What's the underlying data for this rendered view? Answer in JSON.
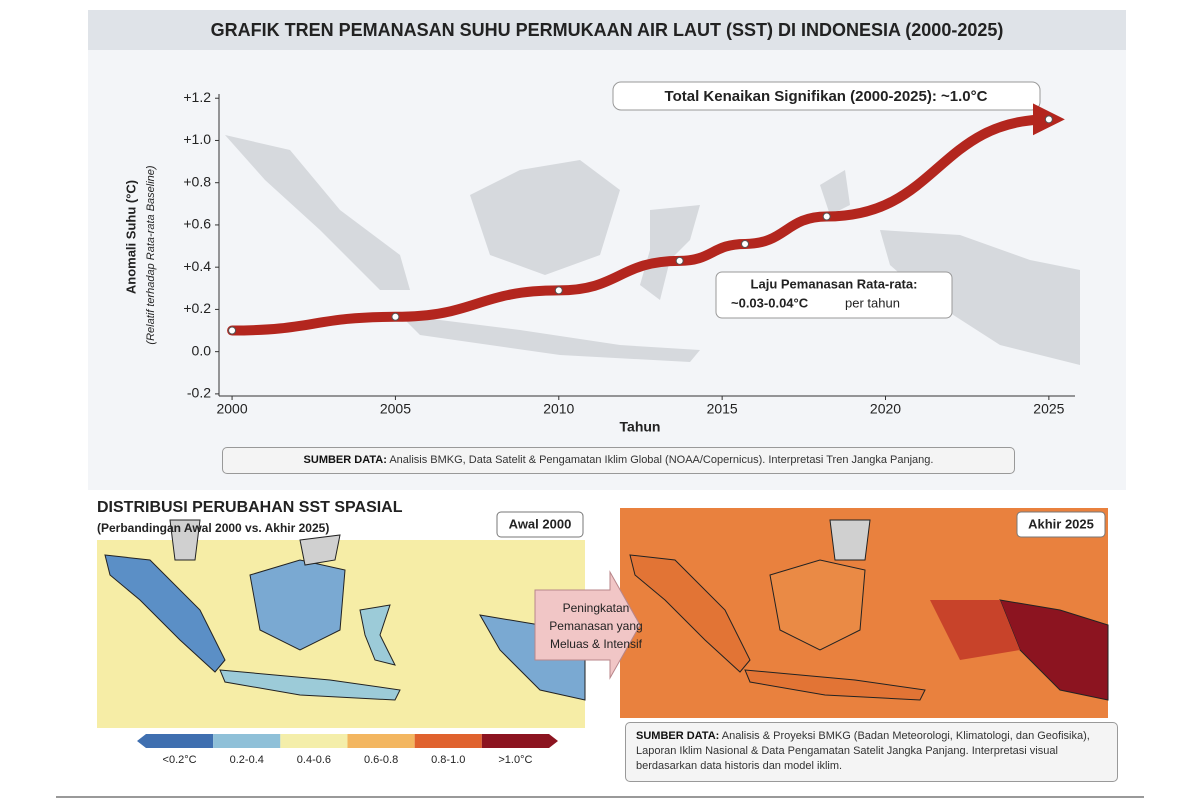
{
  "title": "GRAFIK TREN PEMANASAN SUHU PERMUKAAN AIR LAUT (SST) DI INDONESIA (2000-2025)",
  "chart_data": {
    "type": "line",
    "ylabel": "Anomali Suhu (°C)",
    "ylabel_note": "(Relatif terhadap Rata-rata Baseline)",
    "xlabel": "Tahun",
    "x": [
      2000,
      2005,
      2010,
      2013.7,
      2015.7,
      2018.2,
      2025
    ],
    "values": [
      0.1,
      0.165,
      0.29,
      0.43,
      0.51,
      0.64,
      1.1
    ],
    "color": "#b3261e",
    "xlim": [
      1999.6,
      2025.8
    ],
    "ylim": [
      -0.21,
      1.22
    ],
    "xticks": [
      2000,
      2005,
      2010,
      2015,
      2020,
      2025
    ],
    "yticks": [
      {
        "value": -0.2,
        "label": "-0.2"
      },
      {
        "value": 0,
        "label": "0.0"
      },
      {
        "value": 0.2,
        "label": "+0.2"
      },
      {
        "value": 0.4,
        "label": "+0.4"
      },
      {
        "value": 0.6,
        "label": "+0.6"
      },
      {
        "value": 0.8,
        "label": "+0.8"
      },
      {
        "value": 1.0,
        "label": "+1.0"
      },
      {
        "value": 1.2,
        "label": "+1.2"
      }
    ],
    "grid": false,
    "annotations": {
      "total": "Total Kenaikan Signifikan (2000-2025): ~1.0°C",
      "rate_title": "Laju Pemanasan Rata-rata:",
      "rate_value": "~0.03-0.04°C",
      "rate_unit": "per tahun"
    }
  },
  "source_top": {
    "label": "SUMBER DATA:",
    "text": "Analisis BMKG, Data Satelit & Pengamatan Iklim Global (NOAA/Copernicus). Interpretasi Tren Jangka Panjang."
  },
  "spatial": {
    "title": "DISTRIBUSI PERUBAHAN SST SPASIAL",
    "subtitle": "(Perbandingan Awal 2000 vs. Akhir 2025)",
    "panels": [
      "Awal 2000",
      "Akhir 2025"
    ],
    "arrow_text": [
      "Peningkatan",
      "Pemanasan yang",
      "Meluas & Intensif"
    ],
    "legend": [
      {
        "label": "<0.2°C",
        "color": "#3f6fb0"
      },
      {
        "label": "0.2-0.4",
        "color": "#8fc0d8"
      },
      {
        "label": "0.4-0.6",
        "color": "#f4eeaa"
      },
      {
        "label": "0.6-0.8",
        "color": "#f3b660"
      },
      {
        "label": "0.8-1.0",
        "color": "#e0622e"
      },
      {
        "label": ">1.0°C",
        "color": "#8c1420"
      }
    ],
    "source": {
      "label": "SUMBER DATA:",
      "text": "Analisis & Proyeksi BMKG (Badan Meteorologi, Klimatologi, dan Geofisika), Laporan Iklim Nasional & Data Pengamatan Satelit Jangka Panjang. Interpretasi visual berdasarkan data historis dan model iklim."
    }
  }
}
